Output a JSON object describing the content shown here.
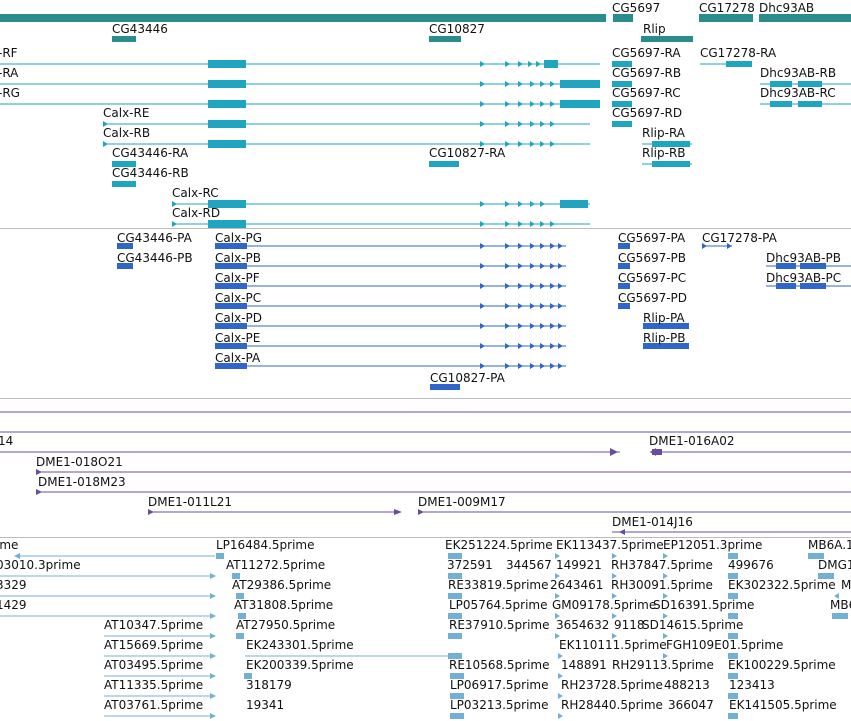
{
  "colors": {
    "gene": "#2a8c8c",
    "transcript": "#1fa5bf",
    "protein": "#2f66c9",
    "bac": "#6a4ba3",
    "est": "#73b0d6"
  },
  "tracks": {
    "genes": [
      {
        "name": "CG43446"
      },
      {
        "name": "CG10827"
      },
      {
        "name": "CG5697"
      },
      {
        "name": "Rlip"
      },
      {
        "name": "CG17278"
      },
      {
        "name": "Dhc93AB"
      }
    ],
    "transcripts": [
      {
        "name": "-RF"
      },
      {
        "name": "-RA"
      },
      {
        "name": "-RG"
      },
      {
        "name": "Calx-RE"
      },
      {
        "name": "Calx-RB"
      },
      {
        "name": "CG43446-RA"
      },
      {
        "name": "CG43446-RB"
      },
      {
        "name": "Calx-RC"
      },
      {
        "name": "Calx-RD"
      },
      {
        "name": "CG10827-RA"
      },
      {
        "name": "CG5697-RA"
      },
      {
        "name": "CG5697-RB"
      },
      {
        "name": "CG5697-RC"
      },
      {
        "name": "CG5697-RD"
      },
      {
        "name": "Rlip-RA"
      },
      {
        "name": "Rlip-RB"
      },
      {
        "name": "CG17278-RA"
      },
      {
        "name": "Dhc93AB-RB"
      },
      {
        "name": "Dhc93AB-RC"
      }
    ],
    "proteins": [
      {
        "name": "CG43446-PA"
      },
      {
        "name": "CG43446-PB"
      },
      {
        "name": "Calx-PG"
      },
      {
        "name": "Calx-PB"
      },
      {
        "name": "Calx-PF"
      },
      {
        "name": "Calx-PC"
      },
      {
        "name": "Calx-PD"
      },
      {
        "name": "Calx-PE"
      },
      {
        "name": "Calx-PA"
      },
      {
        "name": "CG10827-PA"
      },
      {
        "name": "CG5697-PA"
      },
      {
        "name": "CG5697-PB"
      },
      {
        "name": "CG5697-PC"
      },
      {
        "name": "CG5697-PD"
      },
      {
        "name": "Rlip-PA"
      },
      {
        "name": "Rlip-PB"
      },
      {
        "name": "CG17278-PA"
      },
      {
        "name": "Dhc93AB-PB"
      },
      {
        "name": "Dhc93AB-PC"
      }
    ],
    "bacs": [
      {
        "name": "14"
      },
      {
        "name": "DME1-016A02"
      },
      {
        "name": "DME1-018O21"
      },
      {
        "name": "DME1-018M23"
      },
      {
        "name": "DME1-011L21"
      },
      {
        "name": "DME1-009M17"
      },
      {
        "name": "DME1-014J16"
      }
    ],
    "ests": [
      {
        "name": "ime"
      },
      {
        "name": "LP16484.5prime"
      },
      {
        "name": "EK251224.5prime"
      },
      {
        "name": "EK113437.5prime"
      },
      {
        "name": "EP12051.3prime"
      },
      {
        "name": "MB6A.1"
      },
      {
        "name": "03010.3prime"
      },
      {
        "name": "AT11272.5prime"
      },
      {
        "name": "372591"
      },
      {
        "name": "344567"
      },
      {
        "name": "149921"
      },
      {
        "name": "RH37847.5prime"
      },
      {
        "name": "499676"
      },
      {
        "name": "DMG1"
      },
      {
        "name": "3329"
      },
      {
        "name": "AT29386.5prime"
      },
      {
        "name": "RE33819.5prime"
      },
      {
        "name": "2643461"
      },
      {
        "name": "RH30091.5prime"
      },
      {
        "name": "EK302322.5prime"
      },
      {
        "name": "M"
      },
      {
        "name": "1429"
      },
      {
        "name": "AT31808.5prime"
      },
      {
        "name": "LP05764.5prime"
      },
      {
        "name": "GM09178.5prime"
      },
      {
        "name": "SD16391.5prime"
      },
      {
        "name": "MB6"
      },
      {
        "name": "AT10347.5prime"
      },
      {
        "name": "AT27950.5prime"
      },
      {
        "name": "RE37910.5prime"
      },
      {
        "name": "3654632"
      },
      {
        "name": "9118"
      },
      {
        "name": "SD14615.5prime"
      },
      {
        "name": "AT15669.5prime"
      },
      {
        "name": "EK243301.5prime"
      },
      {
        "name": "EK110111.5prime"
      },
      {
        "name": "FGH109E01.5prime"
      },
      {
        "name": "AT03495.5prime"
      },
      {
        "name": "EK200339.5prime"
      },
      {
        "name": "RE10568.5prime"
      },
      {
        "name": "148891"
      },
      {
        "name": "RH29113.5prime"
      },
      {
        "name": "EK100229.5prime"
      },
      {
        "name": "AT11335.5prime"
      },
      {
        "name": "318179"
      },
      {
        "name": "LP06917.5prime"
      },
      {
        "name": "RH23728.5prime"
      },
      {
        "name": "488213"
      },
      {
        "name": "123413"
      },
      {
        "name": "AT03761.5prime"
      },
      {
        "name": "19341"
      },
      {
        "name": "LP03213.5prime"
      },
      {
        "name": "RH28440.5prime"
      },
      {
        "name": "366047"
      },
      {
        "name": "EK141505.5prime"
      }
    ]
  }
}
